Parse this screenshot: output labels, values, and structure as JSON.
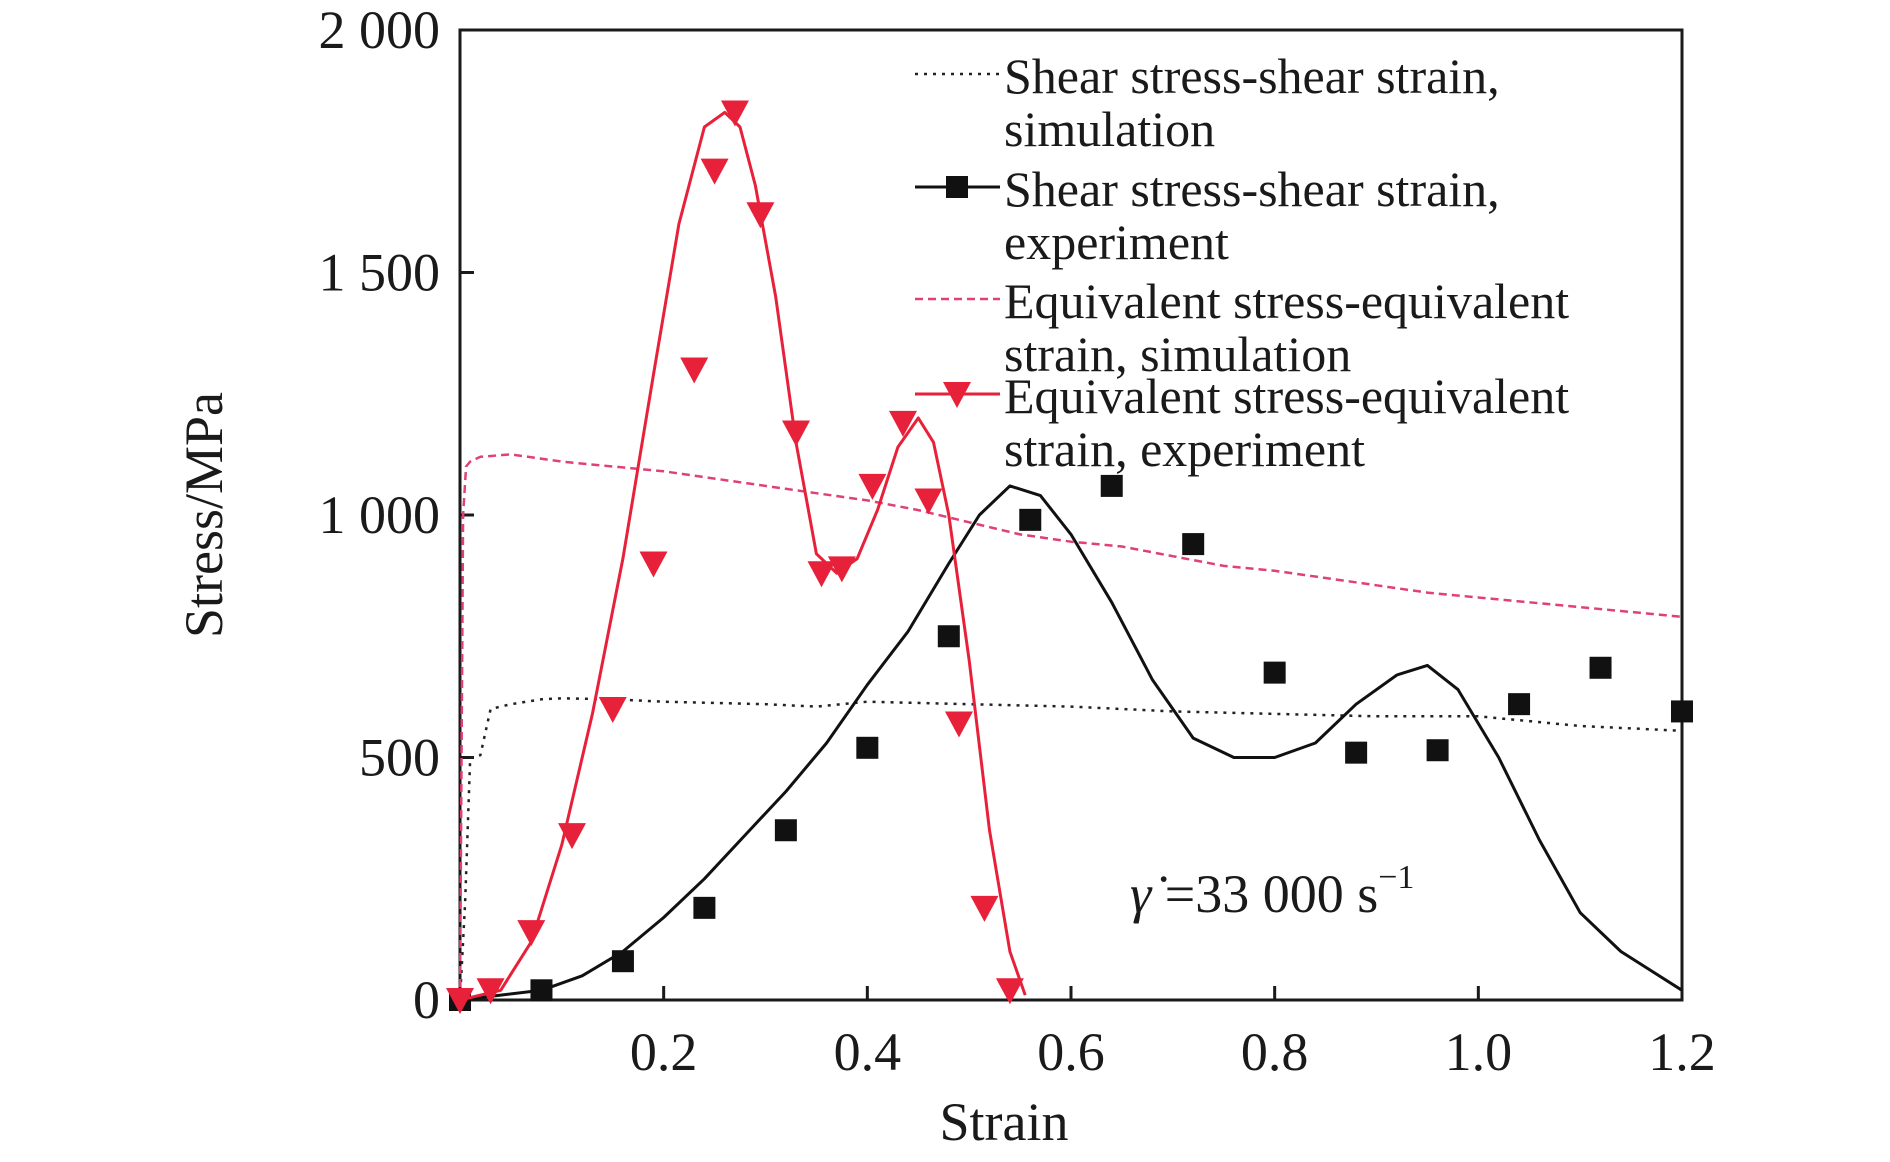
{
  "chart_data": {
    "type": "line",
    "xlabel": "Strain",
    "ylabel": "Stress/MPa",
    "xlim": [
      0,
      1.2
    ],
    "ylim": [
      0,
      2000
    ],
    "x_ticks": [
      0.2,
      0.4,
      0.6,
      0.8,
      1.0,
      1.2
    ],
    "x_tick_labels": [
      "0.2",
      "0.4",
      "0.6",
      "0.8",
      "1.0",
      "1.2"
    ],
    "y_ticks": [
      0,
      500,
      1000,
      1500,
      2000
    ],
    "y_tick_labels": [
      "0",
      "500",
      "1 000",
      "1 500",
      "2 000"
    ],
    "grid": false,
    "legend_position": "top-right",
    "annotation": {
      "symbol": "γ̇",
      "text": " =33 000 s",
      "superscript": "−1"
    },
    "series": [
      {
        "name": "Shear stress-shear strain, simulation",
        "legend_lines": [
          "Shear stress-shear strain,",
          "simulation"
        ],
        "color": "#222222",
        "line_style": "dotted",
        "marker": "none",
        "x": [
          0,
          0.005,
          0.01,
          0.015,
          0.02,
          0.03,
          0.05,
          0.08,
          0.1,
          0.15,
          0.2,
          0.3,
          0.35,
          0.4,
          0.5,
          0.6,
          0.7,
          0.8,
          0.9,
          1.0,
          1.1,
          1.2
        ],
        "y": [
          0,
          200,
          500,
          500,
          505,
          600,
          610,
          620,
          622,
          620,
          615,
          610,
          605,
          615,
          610,
          605,
          595,
          590,
          585,
          585,
          565,
          555
        ]
      },
      {
        "name": "Shear stress-shear strain, experiment",
        "legend_lines": [
          "Shear stress-shear strain,",
          "experiment"
        ],
        "color": "#111111",
        "line_style": "solid",
        "marker": "square",
        "x": [
          0,
          0.02,
          0.04,
          0.08,
          0.12,
          0.16,
          0.2,
          0.24,
          0.28,
          0.32,
          0.36,
          0.4,
          0.44,
          0.48,
          0.51,
          0.54,
          0.57,
          0.6,
          0.64,
          0.68,
          0.72,
          0.76,
          0.8,
          0.84,
          0.88,
          0.92,
          0.95,
          0.98,
          1.02,
          1.06,
          1.1,
          1.14,
          1.2
        ],
        "y": [
          0,
          5,
          10,
          20,
          50,
          100,
          170,
          250,
          340,
          430,
          530,
          650,
          760,
          900,
          1000,
          1060,
          1040,
          960,
          820,
          660,
          540,
          500,
          500,
          530,
          610,
          670,
          690,
          640,
          500,
          330,
          180,
          100,
          20
        ],
        "marker_x": [
          0,
          0.08,
          0.16,
          0.24,
          0.32,
          0.4,
          0.48,
          0.56,
          0.64,
          0.72,
          0.8,
          0.88,
          0.96,
          1.04,
          1.12,
          1.2
        ],
        "marker_y": [
          0,
          20,
          80,
          190,
          350,
          520,
          750,
          990,
          1060,
          940,
          675,
          510,
          515,
          610,
          685,
          595
        ]
      },
      {
        "name": "Equivalent stress-equivalent strain, simulation",
        "legend_lines": [
          "Equivalent stress-equivalent",
          "strain, simulation"
        ],
        "color": "#e0407a",
        "line_style": "dashed",
        "marker": "none",
        "x": [
          0,
          0.003,
          0.006,
          0.01,
          0.02,
          0.05,
          0.1,
          0.15,
          0.2,
          0.25,
          0.3,
          0.35,
          0.4,
          0.45,
          0.5,
          0.55,
          0.6,
          0.65,
          0.7,
          0.75,
          0.8,
          0.85,
          0.9,
          0.95,
          1.0,
          1.05,
          1.1,
          1.15,
          1.2
        ],
        "y": [
          0,
          1000,
          1100,
          1110,
          1120,
          1125,
          1110,
          1100,
          1090,
          1075,
          1060,
          1045,
          1030,
          1010,
          985,
          960,
          945,
          935,
          915,
          895,
          885,
          870,
          855,
          840,
          830,
          820,
          810,
          800,
          790
        ]
      },
      {
        "name": "Equivalent stress-equivalent strain, experiment",
        "legend_lines": [
          "Equivalent stress-equivalent",
          "strain, experiment"
        ],
        "color": "#e8213a",
        "line_style": "solid",
        "marker": "triangle-down",
        "x": [
          0,
          0.04,
          0.07,
          0.1,
          0.13,
          0.16,
          0.19,
          0.215,
          0.24,
          0.26,
          0.275,
          0.29,
          0.31,
          0.33,
          0.35,
          0.37,
          0.39,
          0.41,
          0.43,
          0.45,
          0.465,
          0.48,
          0.5,
          0.52,
          0.54,
          0.555
        ],
        "y": [
          0,
          20,
          120,
          320,
          590,
          910,
          1290,
          1600,
          1800,
          1830,
          1800,
          1680,
          1450,
          1150,
          920,
          880,
          910,
          1010,
          1140,
          1200,
          1150,
          1000,
          700,
          350,
          100,
          10
        ],
        "marker_x": [
          0,
          0.03,
          0.07,
          0.11,
          0.15,
          0.19,
          0.23,
          0.25,
          0.27,
          0.295,
          0.33,
          0.355,
          0.375,
          0.405,
          0.435,
          0.46,
          0.49,
          0.515,
          0.54
        ],
        "marker_y": [
          0,
          20,
          140,
          340,
          600,
          900,
          1300,
          1710,
          1830,
          1620,
          1170,
          880,
          890,
          1060,
          1190,
          1030,
          570,
          190,
          20
        ]
      }
    ]
  }
}
